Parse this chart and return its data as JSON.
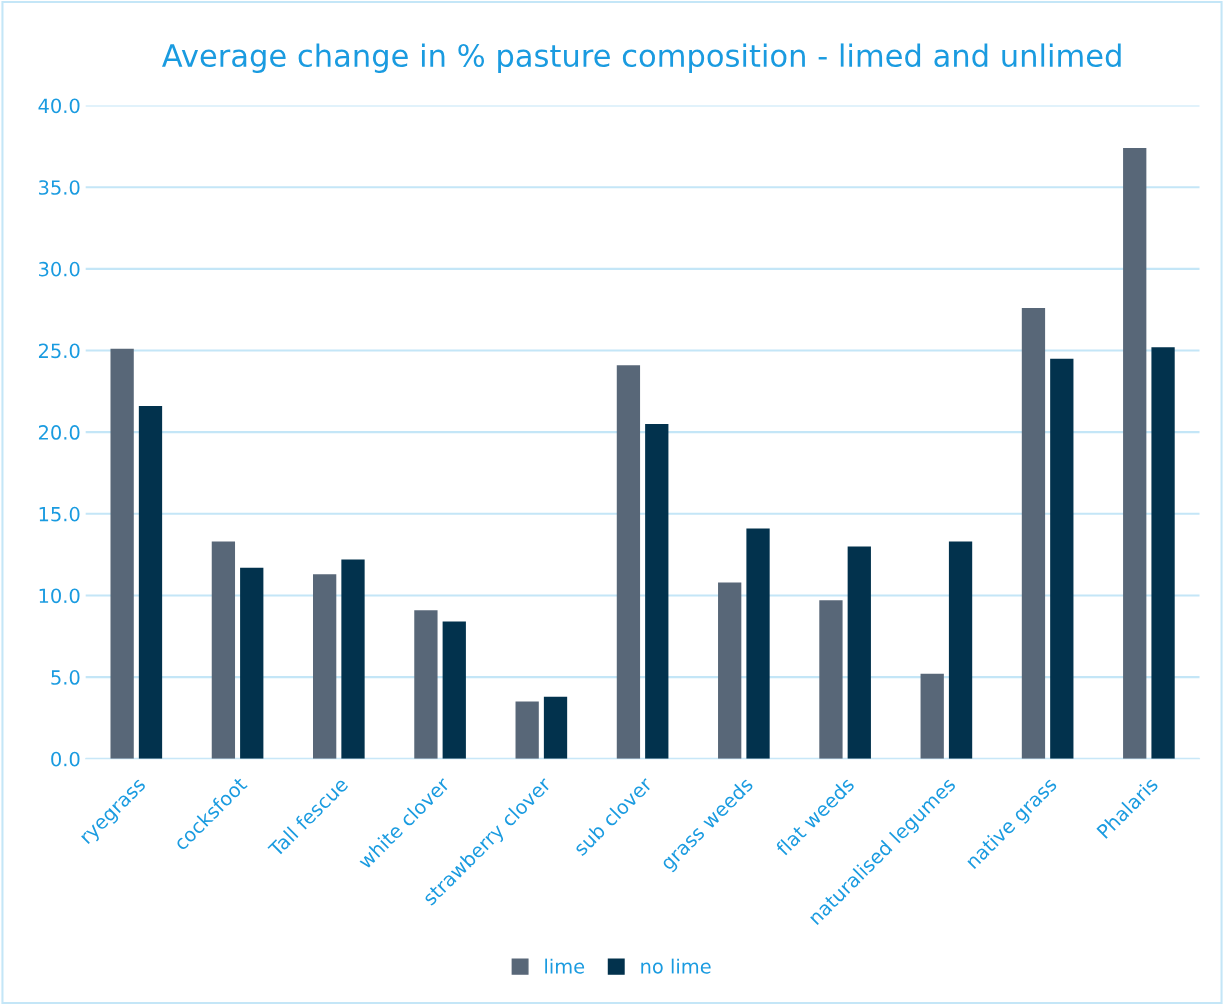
{
  "chart_data": {
    "type": "bar",
    "title": "Average change in % pasture composition - limed and unlimed",
    "categories": [
      "ryegrass",
      "cocksfoot",
      "Tall fescue",
      "white clover",
      "strawberry clover",
      "sub clover",
      "grass weeds",
      "flat weeds",
      "naturalised legumes",
      "native grass",
      "Phalaris"
    ],
    "series": [
      {
        "name": "lime",
        "color": "#586778",
        "values": [
          25.1,
          13.3,
          11.3,
          9.1,
          3.5,
          24.1,
          10.8,
          9.7,
          5.2,
          27.6,
          37.4
        ]
      },
      {
        "name": "no lime",
        "color": "#02324d",
        "values": [
          21.6,
          11.7,
          12.2,
          8.4,
          3.8,
          20.5,
          14.1,
          13.0,
          13.3,
          24.5,
          25.2
        ]
      }
    ],
    "ylim": [
      0,
      40
    ],
    "yticks": [
      {
        "value": 0,
        "label": "0.0"
      },
      {
        "value": 5,
        "label": "5.0"
      },
      {
        "value": 10,
        "label": "10.0"
      },
      {
        "value": 15,
        "label": "15.0"
      },
      {
        "value": 20,
        "label": "20.0"
      },
      {
        "value": 25,
        "label": "25.0"
      },
      {
        "value": 30,
        "label": "30.0"
      },
      {
        "value": 35,
        "label": "35.0"
      },
      {
        "value": 40,
        "label": "40.0"
      }
    ],
    "grid": "y",
    "legend": "bottom"
  }
}
